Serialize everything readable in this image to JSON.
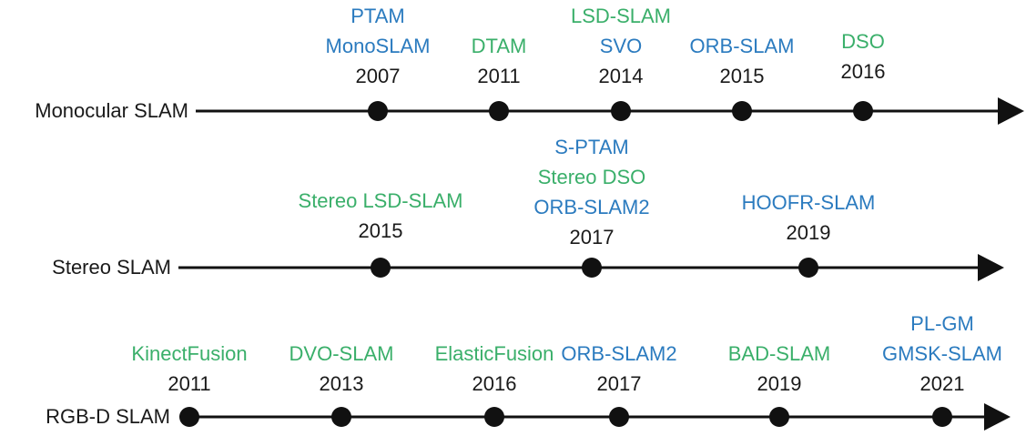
{
  "timelines": [
    {
      "label": "Monocular SLAM",
      "events": [
        {
          "year": 2007,
          "methods": [
            {
              "name": "PTAM",
              "color": "#2b7bbf"
            },
            {
              "name": "MonoSLAM",
              "color": "#2b7bbf"
            }
          ]
        },
        {
          "year": 2011,
          "methods": [
            {
              "name": "DTAM",
              "color": "#3aaf6a"
            }
          ]
        },
        {
          "year": 2014,
          "methods": [
            {
              "name": "LSD-SLAM",
              "color": "#3aaf6a"
            },
            {
              "name": "SVO",
              "color": "#2b7bbf"
            }
          ]
        },
        {
          "year": 2015,
          "methods": [
            {
              "name": "ORB-SLAM",
              "color": "#2b7bbf"
            }
          ]
        },
        {
          "year": 2016,
          "methods": [
            {
              "name": "DSO",
              "color": "#3aaf6a"
            }
          ]
        }
      ]
    },
    {
      "label": "Stereo SLAM",
      "events": [
        {
          "year": 2015,
          "methods": [
            {
              "name": "Stereo LSD-SLAM",
              "color": "#3aaf6a"
            }
          ]
        },
        {
          "year": 2017,
          "methods": [
            {
              "name": "S-PTAM",
              "color": "#2b7bbf"
            },
            {
              "name": "Stereo DSO",
              "color": "#3aaf6a"
            },
            {
              "name": "ORB-SLAM2",
              "color": "#2b7bbf"
            }
          ]
        },
        {
          "year": 2019,
          "methods": [
            {
              "name": "HOOFR-SLAM",
              "color": "#2b7bbf"
            }
          ]
        }
      ]
    },
    {
      "label": "RGB-D SLAM",
      "events": [
        {
          "year": 2011,
          "methods": [
            {
              "name": "KinectFusion",
              "color": "#3aaf6a"
            }
          ]
        },
        {
          "year": 2013,
          "methods": [
            {
              "name": "DVO-SLAM",
              "color": "#3aaf6a"
            }
          ]
        },
        {
          "year": 2016,
          "methods": [
            {
              "name": "ElasticFusion",
              "color": "#3aaf6a"
            }
          ]
        },
        {
          "year": 2017,
          "methods": [
            {
              "name": "ORB-SLAM2",
              "color": "#2b7bbf"
            }
          ]
        },
        {
          "year": 2019,
          "methods": [
            {
              "name": "BAD-SLAM",
              "color": "#3aaf6a"
            }
          ]
        },
        {
          "year": 2021,
          "methods": [
            {
              "name": "PL-GM",
              "color": "#2b7bbf"
            },
            {
              "name": "GMSK-SLAM",
              "color": "#2b7bbf"
            }
          ]
        }
      ]
    }
  ]
}
